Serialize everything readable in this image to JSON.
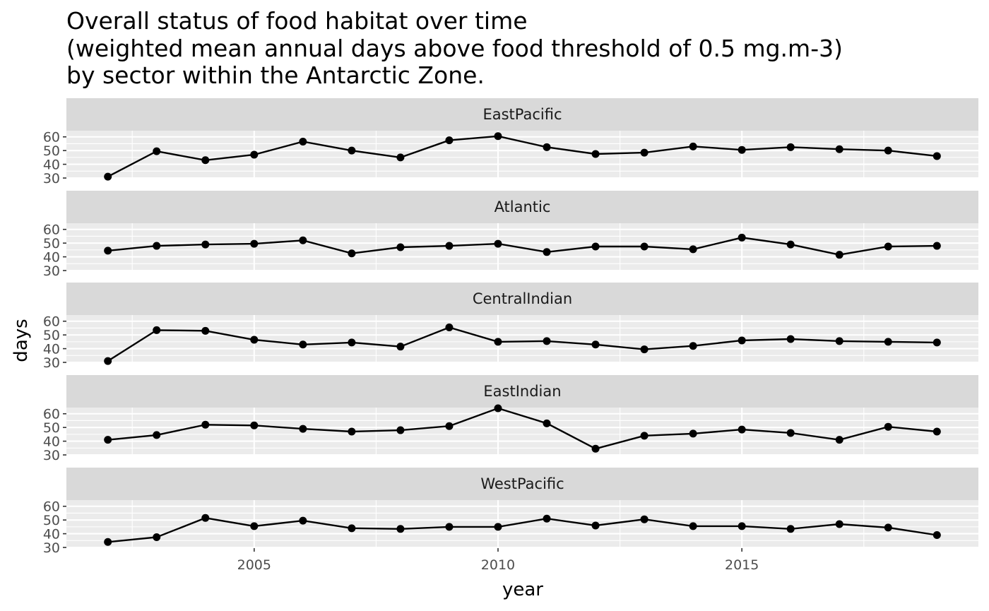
{
  "chart_data": {
    "type": "line",
    "title_lines": [
      "Overall status of food habitat over time",
      "(weighted mean annual days above food threshold of 0.5 mg.m-3)",
      "by sector within the Antarctic Zone."
    ],
    "xlabel": "year",
    "ylabel": "days",
    "x": [
      2002,
      2003,
      2004,
      2005,
      2006,
      2007,
      2008,
      2009,
      2010,
      2011,
      2012,
      2013,
      2014,
      2015,
      2016,
      2017,
      2018,
      2019
    ],
    "x_ticks": [
      "2005",
      "2010",
      "2015"
    ],
    "y_ticks": [
      "30",
      "40",
      "50",
      "60"
    ],
    "xlim": [
      2001.15,
      2019.85
    ],
    "ylim": [
      29.5,
      64.5
    ],
    "grid": true,
    "facets": [
      {
        "name": "EastPacific",
        "values": [
          31.0,
          49.5,
          43.0,
          47.0,
          56.5,
          50.0,
          45.0,
          57.5,
          60.5,
          52.5,
          47.5,
          48.5,
          53.0,
          50.5,
          52.5,
          51.0,
          50.0,
          46.0
        ]
      },
      {
        "name": "Atlantic",
        "values": [
          44.5,
          48.0,
          49.0,
          49.5,
          52.0,
          42.5,
          47.0,
          48.0,
          49.5,
          43.5,
          47.5,
          47.5,
          45.5,
          54.0,
          49.0,
          41.5,
          47.5,
          48.0
        ]
      },
      {
        "name": "CentralIndian",
        "values": [
          31.0,
          53.5,
          53.0,
          46.5,
          43.0,
          44.5,
          41.5,
          55.5,
          45.0,
          45.5,
          43.0,
          39.5,
          42.0,
          46.0,
          47.0,
          45.5,
          45.0,
          44.5
        ]
      },
      {
        "name": "EastIndian",
        "values": [
          41.0,
          44.5,
          52.0,
          51.5,
          49.0,
          47.0,
          48.0,
          51.0,
          64.0,
          53.0,
          34.5,
          44.0,
          45.5,
          48.5,
          46.0,
          41.0,
          50.5,
          47.0
        ]
      },
      {
        "name": "WestPacific",
        "values": [
          34.0,
          37.5,
          51.5,
          45.5,
          49.5,
          44.0,
          43.5,
          45.0,
          45.0,
          51.0,
          46.0,
          50.5,
          45.5,
          45.5,
          43.5,
          47.0,
          44.5,
          39.0
        ]
      }
    ]
  }
}
